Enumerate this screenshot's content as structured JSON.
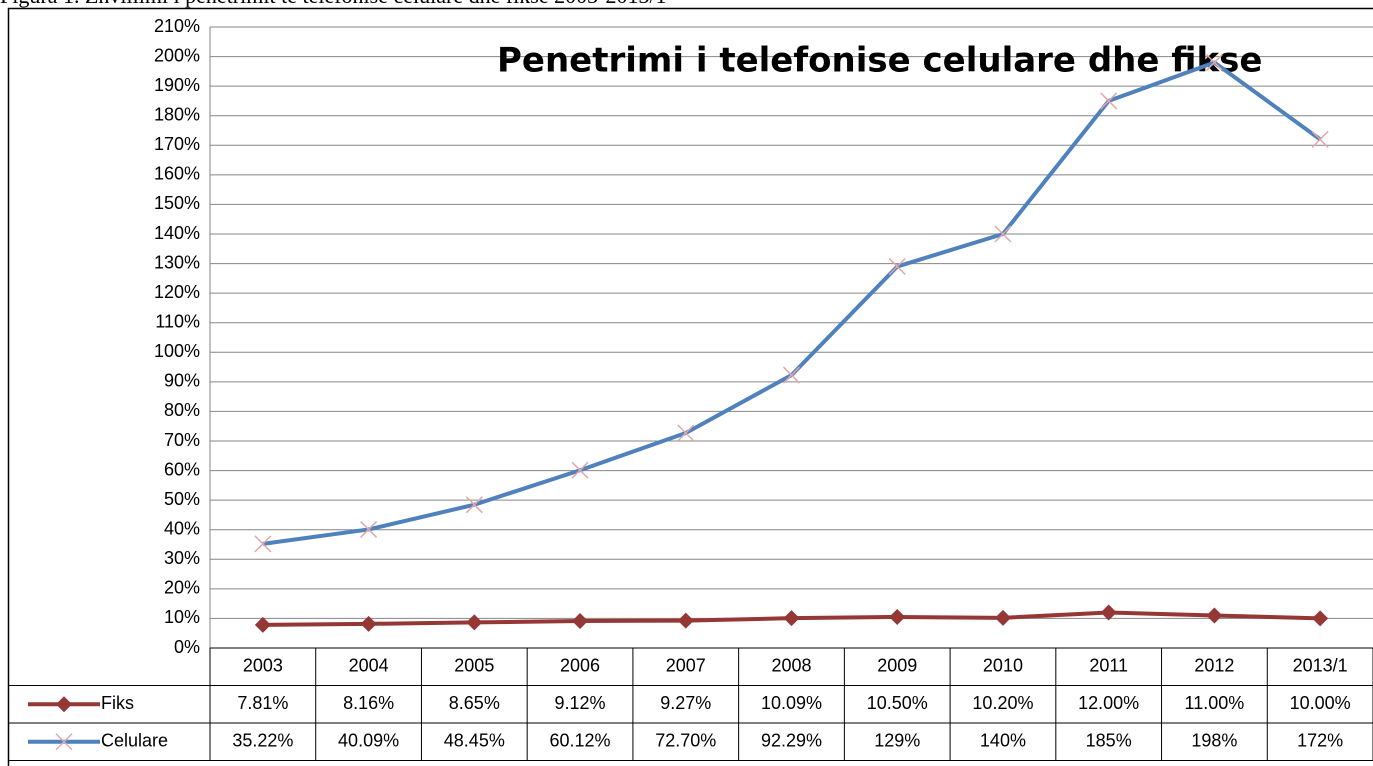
{
  "caption": "Figura 1. Zhvillimi i penetrimit te telefonise celulare dhe fikse 2003-2013/1",
  "chart_data": {
    "type": "line",
    "title": "Penetrimi i telefonise celulare dhe fikse",
    "categories": [
      "2003",
      "2004",
      "2005",
      "2006",
      "2007",
      "2008",
      "2009",
      "2010",
      "2011",
      "2012",
      "2013/1"
    ],
    "series": [
      {
        "name": "Fiks",
        "color": "#953735",
        "marker": "diamond",
        "marker_color": "#953735",
        "values": [
          7.81,
          8.16,
          8.65,
          9.12,
          9.27,
          10.09,
          10.5,
          10.2,
          12,
          11,
          10
        ],
        "value_labels": [
          "7.81%",
          "8.16%",
          "8.65%",
          "9.12%",
          "9.27%",
          "10.09%",
          "10.50%",
          "10.20%",
          "12.00%",
          "11.00%",
          "10.00%"
        ]
      },
      {
        "name": "Celulare",
        "color": "#4f81bd",
        "marker": "x",
        "marker_color": "#e0a8a8",
        "values": [
          35.22,
          40.09,
          48.45,
          60.12,
          72.7,
          92.29,
          129,
          140,
          185,
          198,
          172
        ],
        "value_labels": [
          "35.22%",
          "40.09%",
          "48.45%",
          "60.12%",
          "72.70%",
          "92.29%",
          "129%",
          "140%",
          "185%",
          "198%",
          "172%"
        ]
      }
    ],
    "ylim": [
      0,
      210
    ],
    "yticks": [
      {
        "value": 0,
        "label": "0%"
      },
      {
        "value": 10,
        "label": "10%"
      },
      {
        "value": 20,
        "label": "20%"
      },
      {
        "value": 30,
        "label": "30%"
      },
      {
        "value": 40,
        "label": "40%"
      },
      {
        "value": 50,
        "label": "50%"
      },
      {
        "value": 60,
        "label": "60%"
      },
      {
        "value": 70,
        "label": "70%"
      },
      {
        "value": 80,
        "label": "80%"
      },
      {
        "value": 90,
        "label": "90%"
      },
      {
        "value": 100,
        "label": "100%"
      },
      {
        "value": 110,
        "label": "110%"
      },
      {
        "value": 120,
        "label": "120%"
      },
      {
        "value": 130,
        "label": "130%"
      },
      {
        "value": 140,
        "label": "140%"
      },
      {
        "value": 150,
        "label": "150%"
      },
      {
        "value": 160,
        "label": "160%"
      },
      {
        "value": 170,
        "label": "170%"
      },
      {
        "value": 180,
        "label": "180%"
      },
      {
        "value": 190,
        "label": "190%"
      },
      {
        "value": 200,
        "label": "200%"
      },
      {
        "value": 210,
        "label": "210%"
      }
    ],
    "grid": true,
    "data_table": true
  }
}
